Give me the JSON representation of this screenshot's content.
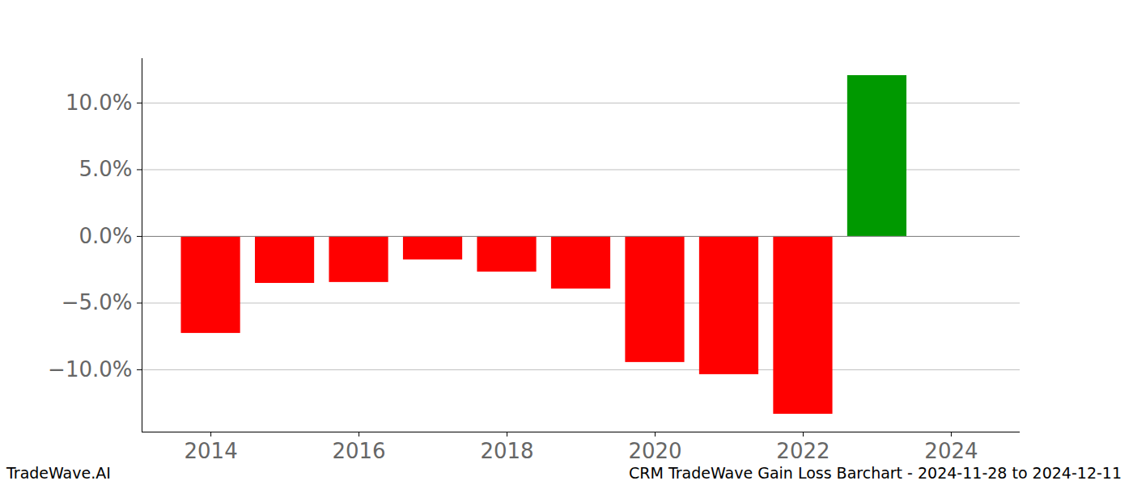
{
  "chart_data": {
    "type": "bar",
    "title": "CRM TradeWave Gain Loss Barchart - 2024-11-28 to 2024-12-11",
    "annotations": [
      "TradeWave.AI"
    ],
    "x": [
      2014,
      2015,
      2016,
      2017,
      2018,
      2019,
      2020,
      2021,
      2022,
      2023
    ],
    "values": [
      -7.27,
      -3.52,
      -3.45,
      -1.76,
      -2.67,
      -3.94,
      -9.45,
      -10.36,
      -13.33,
      12.06
    ],
    "colors": [
      "#ff0000",
      "#ff0000",
      "#ff0000",
      "#ff0000",
      "#ff0000",
      "#ff0000",
      "#ff0000",
      "#ff0000",
      "#ff0000",
      "#009900"
    ],
    "xlim": [
      2013.07,
      2024.93
    ],
    "xticks": [
      2014,
      2016,
      2018,
      2020,
      2022,
      2024
    ],
    "ylim": [
      -14.67,
      13.33
    ],
    "yticks": [
      {
        "value": -10,
        "label": "−10.0%"
      },
      {
        "value": -5,
        "label": "−5.0%"
      },
      {
        "value": 0,
        "label": "0.0%"
      },
      {
        "value": 5,
        "label": "5.0%"
      },
      {
        "value": 10,
        "label": "10.0%"
      }
    ],
    "grid": true
  }
}
